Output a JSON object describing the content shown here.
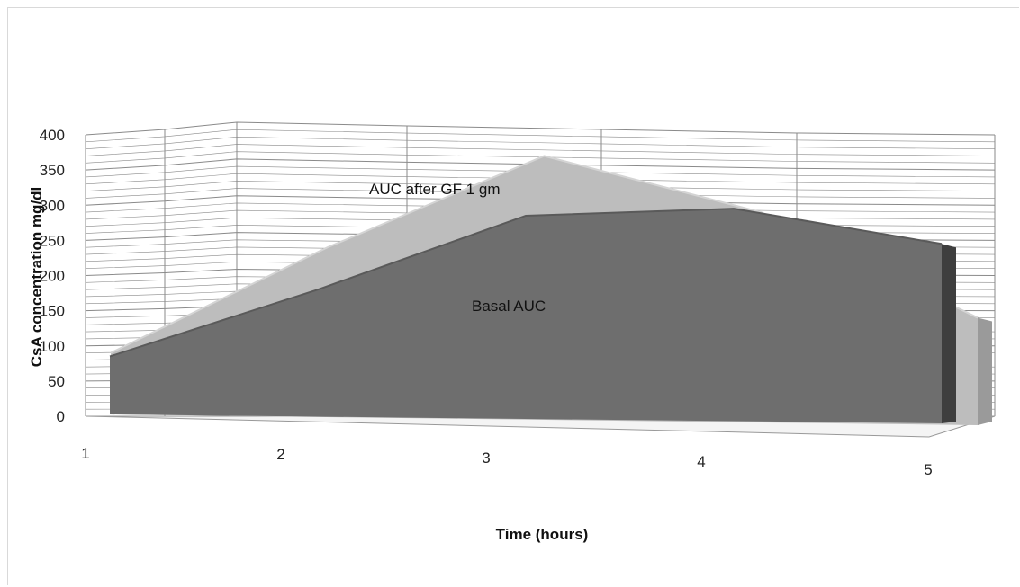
{
  "chart_data": {
    "type": "area",
    "title": "",
    "xlabel": "Time (hours)",
    "ylabel": "CsA concentration mg/dl",
    "x": [
      1,
      2,
      3,
      4,
      5
    ],
    "xticks": [
      "1",
      "2",
      "3",
      "4",
      "5"
    ],
    "yticks": [
      "0",
      "50",
      "100",
      "150",
      "200",
      "250",
      "300",
      "350",
      "400"
    ],
    "ylim": [
      0,
      400
    ],
    "grid": true,
    "series": [
      {
        "name": "AUC after GF 1 gm",
        "values": [
          90,
          240,
          370,
          290,
          140
        ],
        "color": "#bdbdbd"
      },
      {
        "name": "Basal AUC",
        "values": [
          85,
          180,
          285,
          295,
          245
        ],
        "color": "#6e6e6e"
      }
    ]
  }
}
